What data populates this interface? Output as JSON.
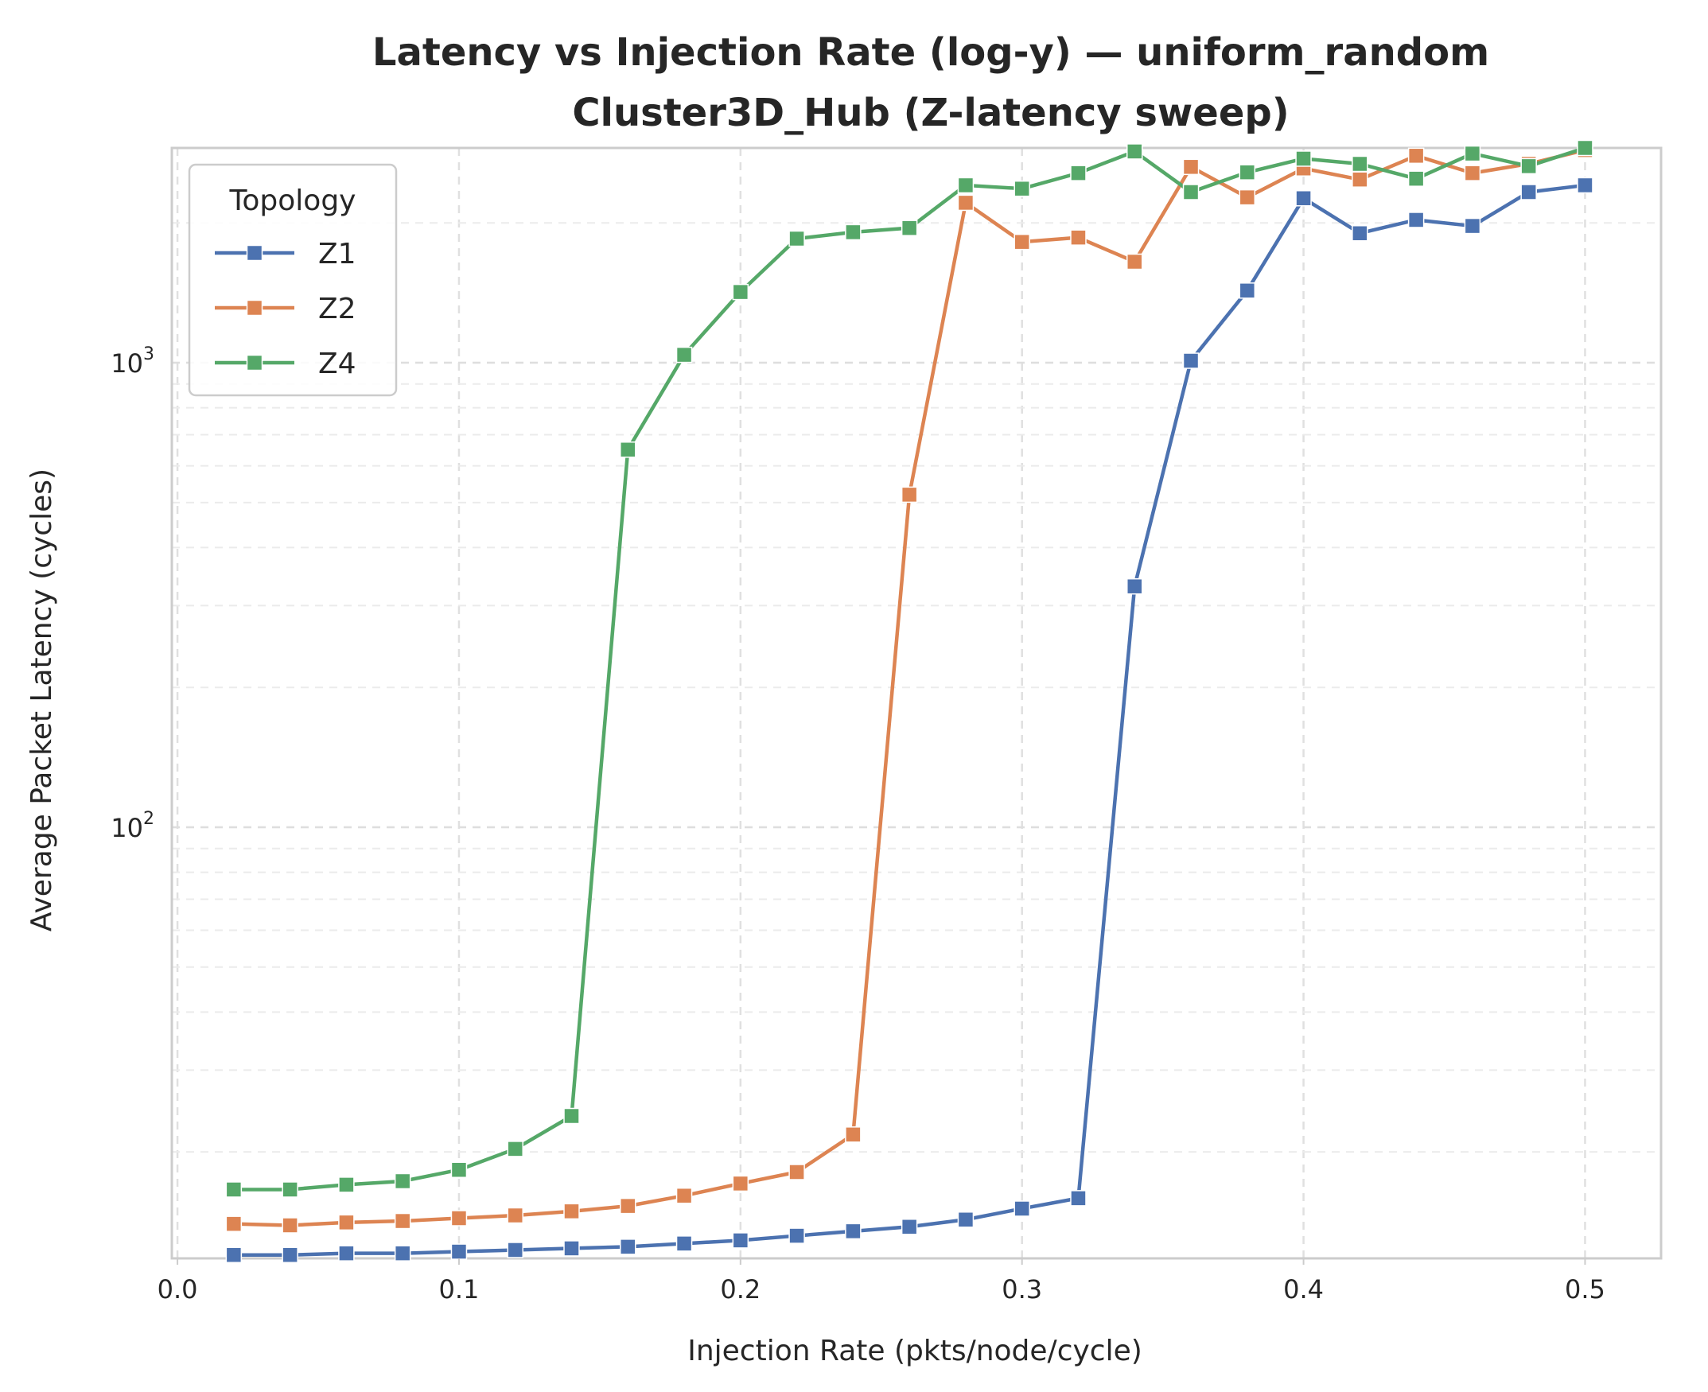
{
  "chart_data": {
    "type": "line",
    "title": "Latency vs Injection Rate (log-y) — uniform_random",
    "subtitle": "Cluster3D_Hub (Z-latency sweep)",
    "xlabel": "Injection Rate (pkts/node/cycle)",
    "ylabel": "Average Packet Latency (cycles)",
    "xlim": [
      -0.002,
      0.527
    ],
    "ylim": [
      11.8,
      2900
    ],
    "yscale": "log",
    "grid": true,
    "x_ticks": [
      {
        "value": 0.0,
        "label": "0.0"
      },
      {
        "value": 0.1,
        "label": "0.1"
      },
      {
        "value": 0.2,
        "label": "0.2"
      },
      {
        "value": 0.3,
        "label": "0.3"
      },
      {
        "value": 0.4,
        "label": "0.4"
      },
      {
        "value": 0.5,
        "label": "0.5"
      }
    ],
    "y_ticks": [
      {
        "value": 100,
        "base": "10",
        "exp": "2"
      },
      {
        "value": 1000,
        "base": "10",
        "exp": "3"
      }
    ],
    "legend": {
      "title": "Topology",
      "position": "upper-left"
    },
    "x": [
      0.02,
      0.04,
      0.06,
      0.08,
      0.1,
      0.12,
      0.14,
      0.16,
      0.18,
      0.2,
      0.22,
      0.24,
      0.26,
      0.28,
      0.3,
      0.32,
      0.34,
      0.36,
      0.38,
      0.4,
      0.42,
      0.44,
      0.46,
      0.48,
      0.5
    ],
    "series": [
      {
        "name": "Z1",
        "color": "#4c72b0",
        "marker": "square",
        "values": [
          12.0,
          12.0,
          12.1,
          12.1,
          12.2,
          12.3,
          12.4,
          12.5,
          12.7,
          12.9,
          13.2,
          13.5,
          13.8,
          14.3,
          15.1,
          15.9,
          330,
          1010,
          1430,
          2260,
          1900,
          2030,
          1970,
          2330,
          2410
        ]
      },
      {
        "name": "Z2",
        "color": "#dd8452",
        "marker": "square",
        "values": [
          14.0,
          13.9,
          14.1,
          14.2,
          14.4,
          14.6,
          14.9,
          15.3,
          16.1,
          17.1,
          18.1,
          21.8,
          520,
          2210,
          1820,
          1860,
          1650,
          2640,
          2270,
          2620,
          2480,
          2790,
          2560,
          2680,
          2870
        ]
      },
      {
        "name": "Z4",
        "color": "#55a868",
        "marker": "square",
        "values": [
          16.6,
          16.6,
          17.0,
          17.3,
          18.3,
          20.3,
          23.9,
          650,
          1040,
          1420,
          1850,
          1910,
          1950,
          2410,
          2370,
          2560,
          2850,
          2330,
          2570,
          2750,
          2680,
          2490,
          2820,
          2650,
          2900
        ]
      }
    ]
  }
}
